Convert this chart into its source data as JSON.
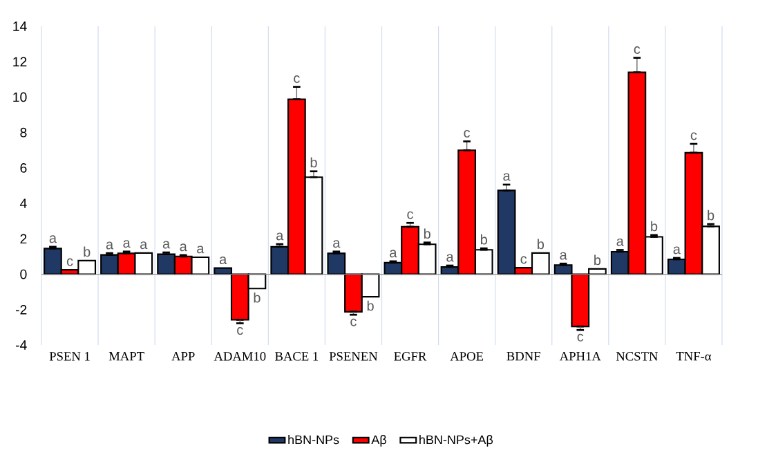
{
  "chart_data": {
    "type": "bar",
    "categories": [
      "PSEN 1",
      "MAPT",
      "APP",
      "ADAM10",
      "BACE 1",
      "PSENEN",
      "EGFR",
      "APOE",
      "BDNF",
      "APH1A",
      "NCSTN",
      "TNF-α"
    ],
    "series": [
      {
        "name": "hBN-NPs",
        "color": "#203864",
        "values": [
          1.45,
          1.09,
          1.13,
          0.35,
          1.55,
          1.18,
          0.65,
          0.41,
          4.73,
          0.52,
          1.27,
          0.84
        ],
        "errors": [
          0.1,
          0.1,
          0.1,
          null,
          0.15,
          0.1,
          0.08,
          0.08,
          0.33,
          0.08,
          0.1,
          0.08
        ],
        "value_labels": [
          "a",
          "a",
          "a",
          "a",
          "a",
          "a",
          "a",
          "a",
          "a",
          "a",
          "a",
          "a"
        ]
      },
      {
        "name": "Aβ",
        "color": "#ff0000",
        "values": [
          0.25,
          1.18,
          1.0,
          -2.57,
          9.88,
          -2.12,
          2.68,
          7.0,
          0.37,
          -2.95,
          11.4,
          6.86
        ],
        "errors": [
          null,
          0.1,
          0.08,
          0.2,
          0.7,
          0.17,
          0.22,
          0.5,
          null,
          0.2,
          0.82,
          0.5
        ],
        "value_labels": [
          "c",
          "a",
          "a",
          "c",
          "c",
          "c",
          "c",
          "c",
          "c",
          "c",
          "c",
          "c"
        ]
      },
      {
        "name": "hBN-NPs+Aβ",
        "color": "#ffffff",
        "values": [
          0.77,
          1.2,
          0.96,
          -0.81,
          5.48,
          -1.27,
          1.69,
          1.38,
          1.2,
          0.3,
          2.11,
          2.7
        ],
        "errors": [
          null,
          null,
          null,
          null,
          0.33,
          null,
          0.1,
          0.08,
          null,
          null,
          0.1,
          0.13
        ],
        "value_labels": [
          "b",
          "a",
          "a",
          "b",
          "b",
          "b",
          "b",
          "b",
          "b",
          "b",
          "b",
          "b"
        ]
      }
    ],
    "ylim": [
      -4,
      14
    ],
    "yticks": [
      -4,
      -2,
      0,
      2,
      4,
      6,
      8,
      10,
      12,
      14
    ],
    "grid": "x",
    "legend": "bottom"
  }
}
